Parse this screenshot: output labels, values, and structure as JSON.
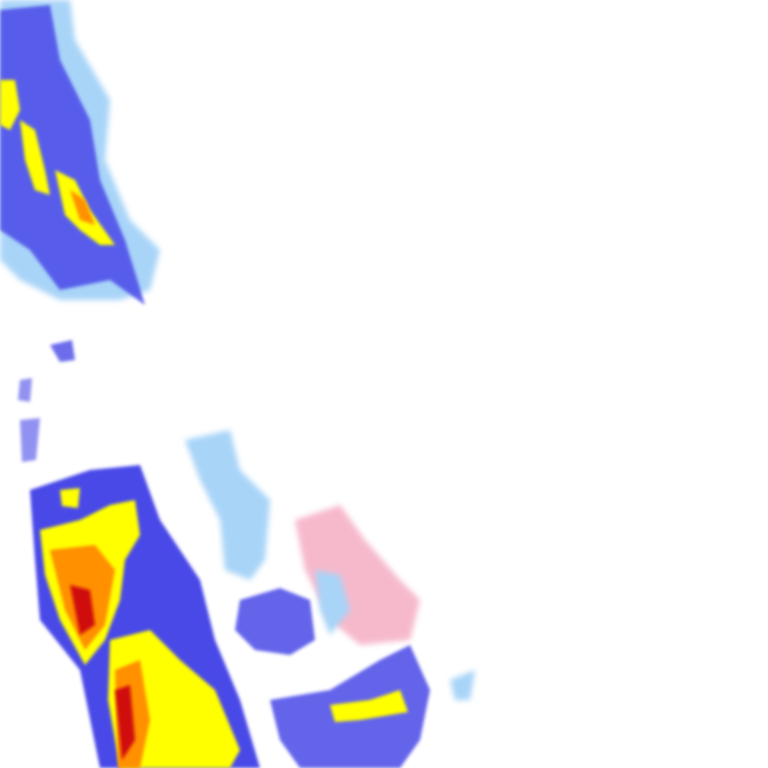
{
  "map": {
    "type": "weather-radar-tile",
    "background": "#ffffff",
    "palette": {
      "light": "#a8d4f8",
      "moderate": "#4848e8",
      "heavy": "#ffff00",
      "intense": "#ff9000",
      "extreme": "#d01010",
      "mixed": "#f4a8c0"
    }
  }
}
